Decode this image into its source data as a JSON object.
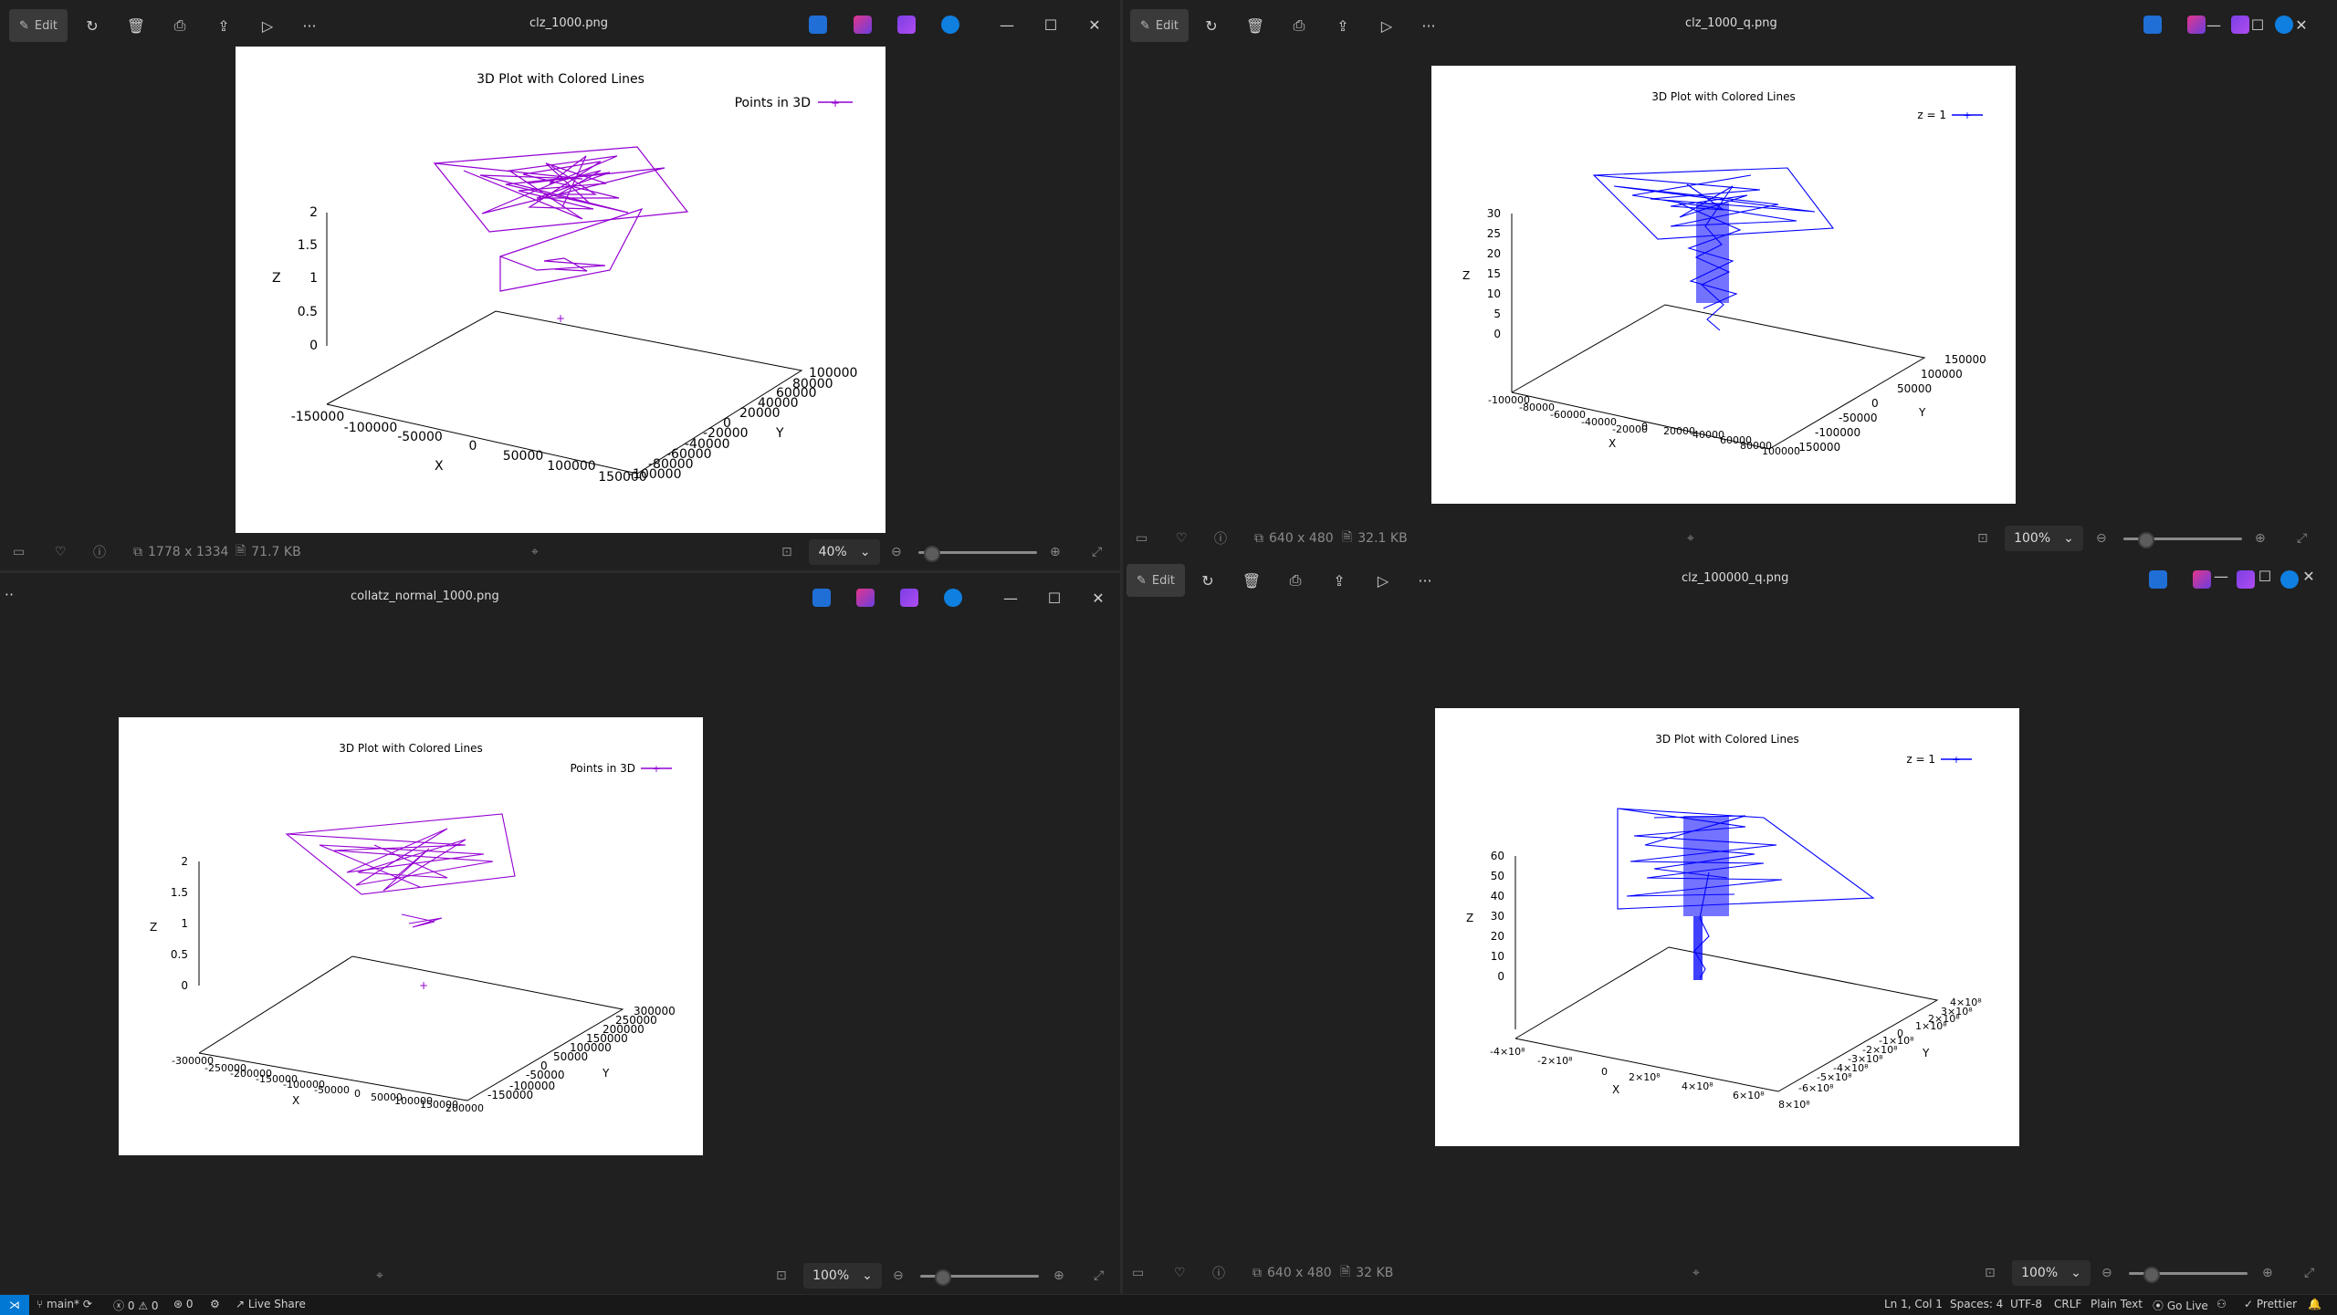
{
  "windows": [
    {
      "id": "w1",
      "title": "clz_1000.png",
      "edit_label": "Edit",
      "zoom": "40%",
      "dimensions": "1778 x 1334",
      "filesize": "71.7 KB",
      "plot": {
        "title": "3D Plot with Colored Lines",
        "legend": "Points in 3D",
        "color": "#9400d3",
        "zlabel": "Z",
        "xlabel": "X",
        "ylabel": "Y",
        "zticks": [
          "2",
          "1.5",
          "1",
          "0.5",
          "0"
        ],
        "xticks": [
          "-150000",
          "-100000",
          "-50000",
          "0",
          "50000",
          "100000",
          "150000"
        ],
        "yticks": [
          "100000",
          "80000",
          "60000",
          "40000",
          "20000",
          "0",
          "-20000",
          "-40000",
          "-60000",
          "-80000",
          "-100000"
        ]
      }
    },
    {
      "id": "w2",
      "title": "clz_1000_q.png",
      "edit_label": "Edit",
      "zoom": "100%",
      "dimensions": "640 x 480",
      "filesize": "32.1 KB",
      "plot": {
        "title": "3D Plot with Colored Lines",
        "legend": "z = 1",
        "color": "#0000ff",
        "zlabel": "Z",
        "xlabel": "X",
        "ylabel": "Y",
        "zticks": [
          "30",
          "25",
          "20",
          "15",
          "10",
          "5",
          "0"
        ],
        "xticks": [
          "-100000",
          "-80000",
          "-60000",
          "-40000",
          "-20000",
          "0",
          "20000",
          "40000",
          "60000",
          "80000",
          "100000"
        ],
        "yticks": [
          "150000",
          "100000",
          "50000",
          "0",
          "-50000",
          "-100000",
          "-150000"
        ]
      }
    },
    {
      "id": "w3",
      "title": "collatz_normal_1000.png",
      "zoom": "100%",
      "plot": {
        "title": "3D Plot with Colored Lines",
        "legend": "Points in 3D",
        "color": "#9400d3",
        "zlabel": "Z",
        "xlabel": "X",
        "ylabel": "Y",
        "zticks": [
          "2",
          "1.5",
          "1",
          "0.5",
          "0"
        ],
        "xticks": [
          "-300000",
          "-250000",
          "-200000",
          "-150000",
          "-100000",
          "-50000",
          "0",
          "50000",
          "100000",
          "150000",
          "200000"
        ],
        "yticks": [
          "300000",
          "250000",
          "200000",
          "150000",
          "100000",
          "50000",
          "0",
          "-50000",
          "-100000",
          "-150000"
        ]
      }
    },
    {
      "id": "w4",
      "title": "clz_100000_q.png",
      "edit_label": "Edit",
      "zoom": "100%",
      "dimensions": "640 x 480",
      "filesize": "32 KB",
      "plot": {
        "title": "3D Plot with Colored Lines",
        "legend": "z = 1",
        "color": "#0000ff",
        "zlabel": "Z",
        "xlabel": "X",
        "ylabel": "Y",
        "zticks": [
          "60",
          "50",
          "40",
          "30",
          "20",
          "10",
          "0"
        ],
        "xticks": [
          "-4×10⁸",
          "-2×10⁸",
          "0",
          "2×10⁸",
          "4×10⁸",
          "6×10⁸",
          "8×10⁸"
        ],
        "yticks": [
          "4×10⁸",
          "3×10⁸",
          "2×10⁸",
          "1×10⁸",
          "0",
          "-1×10⁸",
          "-2×10⁸",
          "-3×10⁸",
          "-4×10⁸",
          "-5×10⁸",
          "-6×10⁸"
        ]
      }
    }
  ],
  "vscode_status": {
    "branch": "main*",
    "errors": "0",
    "warnings": "0",
    "ports": "0",
    "live_share": "Live Share",
    "cursor": "Ln 1, Col 1",
    "spaces": "Spaces: 4",
    "encoding": "UTF-8",
    "eol": "CRLF",
    "language": "Plain Text",
    "go_live": "Go Live",
    "prettier": "Prettier"
  },
  "icons": {
    "edit": "edit-icon",
    "rotate": "rotate-icon",
    "delete": "trash-icon",
    "print": "print-icon",
    "share": "share-icon",
    "slideshow": "slideshow-icon",
    "more": "more-icon",
    "minimize": "minimize-icon",
    "maximize": "maximize-icon",
    "close": "close-icon",
    "filmstrip": "filmstrip-icon",
    "favorite": "heart-icon",
    "info": "info-icon",
    "zoom_in": "zoom-in-icon",
    "zoom_out": "zoom-out-icon",
    "fullscreen": "fullscreen-icon",
    "fit": "fit-icon",
    "visual_search": "visual-search-icon"
  }
}
